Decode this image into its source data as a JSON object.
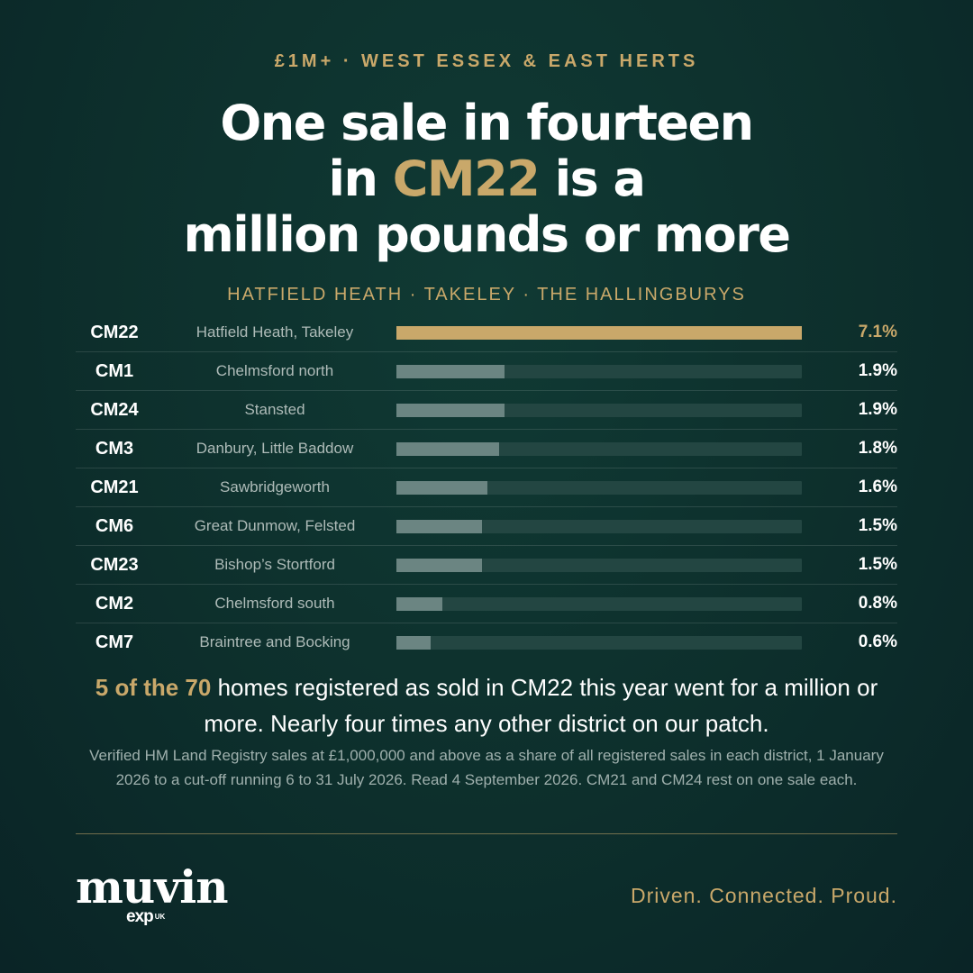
{
  "kicker": "£1M+ · WEST ESSEX & EAST HERTS",
  "headline": {
    "line1": "One sale in fourteen",
    "line2_pre": "in ",
    "line2_accent": "CM22",
    "line2_post": " is a",
    "line3": "million pounds or more"
  },
  "subhead": "HATFIELD HEATH · TAKELEY · THE HALLINGBURYS",
  "chart_data": {
    "type": "bar",
    "orientation": "horizontal",
    "highlight": "CM22",
    "max_value": 7.1,
    "rows": [
      {
        "code": "CM22",
        "area": "Hatfield Heath, Takeley",
        "value": 7.1,
        "label": "7.1%"
      },
      {
        "code": "CM1",
        "area": "Chelmsford north",
        "value": 1.9,
        "label": "1.9%"
      },
      {
        "code": "CM24",
        "area": "Stansted",
        "value": 1.9,
        "label": "1.9%"
      },
      {
        "code": "CM3",
        "area": "Danbury, Little Baddow",
        "value": 1.8,
        "label": "1.8%"
      },
      {
        "code": "CM21",
        "area": "Sawbridgeworth",
        "value": 1.6,
        "label": "1.6%"
      },
      {
        "code": "CM6",
        "area": "Great Dunmow, Felsted",
        "value": 1.5,
        "label": "1.5%"
      },
      {
        "code": "CM23",
        "area": "Bishop’s Stortford",
        "value": 1.5,
        "label": "1.5%"
      },
      {
        "code": "CM2",
        "area": "Chelmsford south",
        "value": 0.8,
        "label": "0.8%"
      },
      {
        "code": "CM7",
        "area": "Braintree and Bocking",
        "value": 0.6,
        "label": "0.6%"
      }
    ]
  },
  "summary": {
    "highlight": "5 of the 70",
    "text": " homes registered as sold in CM22 this year went for a million or more. Nearly four times any other district on our patch."
  },
  "note": "Verified HM Land Registry sales at £1,000,000 and above as a share of all registered sales in each district, 1 January 2026 to a cut-off running 6 to 31 July 2026. Read 4 September 2026. CM21 and CM24 rest on one sale each.",
  "footer": {
    "logo": "muvin",
    "sublogo": "exp",
    "sublogo_suffix": "UK",
    "tagline": "Driven. Connected. Proud."
  },
  "colors": {
    "background": "#0d2f2c",
    "accent": "#c9a86a",
    "bar": "#6b8582",
    "track": "#234642"
  }
}
